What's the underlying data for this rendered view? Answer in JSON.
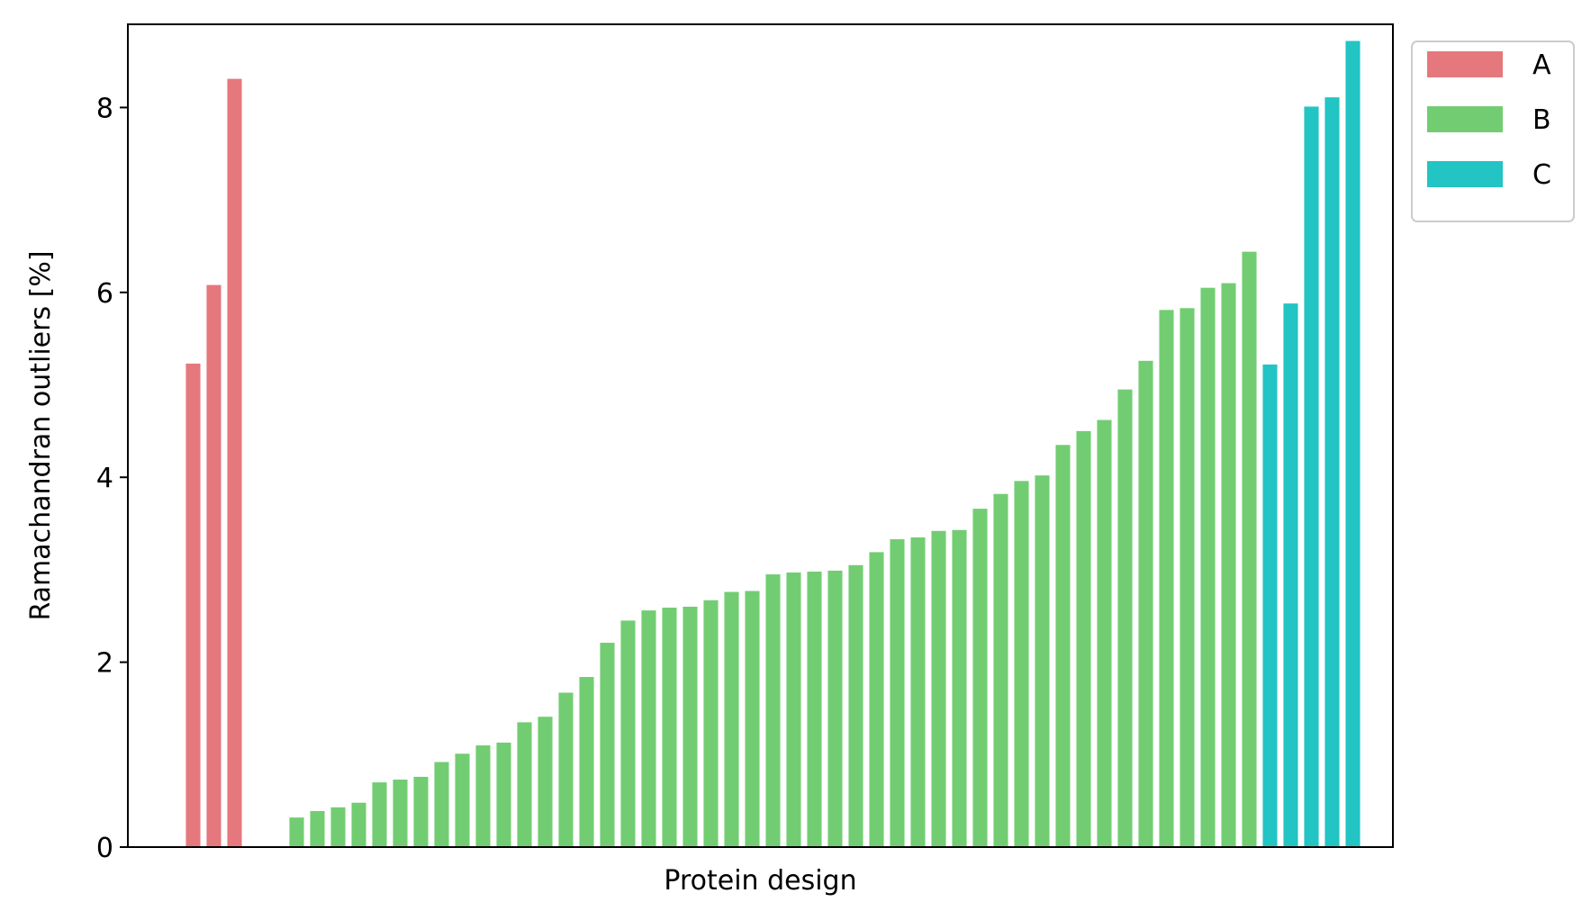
{
  "chart_data": {
    "type": "bar",
    "title": "",
    "xlabel": "Protein design",
    "ylabel": "Ramachandran outliers [%]",
    "ylim": [
      0,
      8.9
    ],
    "yticks": [
      0,
      2,
      4,
      6,
      8
    ],
    "grid": false,
    "legend_position": "outside-top-right",
    "series": [
      {
        "name": "A",
        "color": "#e5787c",
        "values": [
          5.23,
          6.08,
          8.31
        ]
      },
      {
        "name": "B",
        "color": "#72cd72",
        "values": [
          0.32,
          0.39,
          0.43,
          0.48,
          0.7,
          0.73,
          0.76,
          0.92,
          1.01,
          1.1,
          1.13,
          1.35,
          1.41,
          1.67,
          1.84,
          2.21,
          2.45,
          2.56,
          2.59,
          2.6,
          2.67,
          2.76,
          2.77,
          2.95,
          2.97,
          2.98,
          2.99,
          3.05,
          3.19,
          3.33,
          3.35,
          3.42,
          3.43,
          3.66,
          3.82,
          3.96,
          4.02,
          4.35,
          4.5,
          4.62,
          4.95,
          5.26,
          5.81,
          5.83,
          6.05,
          6.1,
          6.44
        ]
      },
      {
        "name": "C",
        "color": "#22c4c4",
        "values": [
          5.22,
          5.88,
          8.01,
          8.11,
          8.72
        ]
      }
    ]
  }
}
